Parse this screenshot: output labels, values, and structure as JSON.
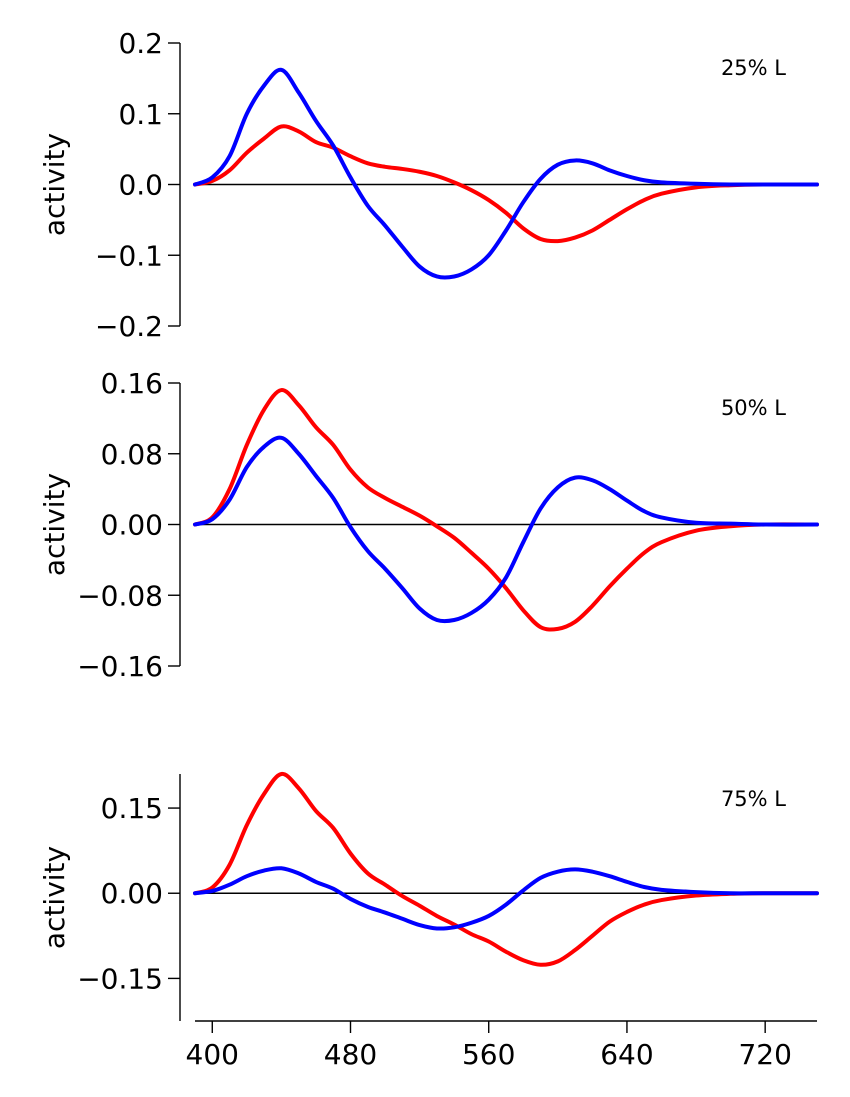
{
  "chart_data": [
    {
      "type": "line",
      "annotation": "25% L",
      "ylabel": "activity",
      "ylim": [
        -0.2,
        0.2
      ],
      "yticks": [
        -0.2,
        -0.1,
        0.0,
        0.1,
        0.2
      ],
      "ytick_labels": [
        "−0.2",
        "−0.1",
        "0.0",
        "0.1",
        "0.2"
      ],
      "series": [
        {
          "color": "#ff0000",
          "x": [
            390,
            400,
            410,
            420,
            430,
            440,
            450,
            460,
            470,
            480,
            490,
            500,
            510,
            520,
            530,
            540,
            550,
            560,
            570,
            580,
            590,
            600,
            610,
            620,
            630,
            640,
            650,
            660,
            680,
            700,
            720,
            750
          ],
          "values": [
            0,
            0.005,
            0.02,
            0.045,
            0.065,
            0.082,
            0.075,
            0.06,
            0.052,
            0.04,
            0.03,
            0.025,
            0.022,
            0.018,
            0.012,
            0.003,
            -0.008,
            -0.022,
            -0.04,
            -0.062,
            -0.077,
            -0.08,
            -0.075,
            -0.065,
            -0.05,
            -0.035,
            -0.022,
            -0.013,
            -0.004,
            -0.001,
            0,
            0
          ]
        },
        {
          "color": "#0000ff",
          "x": [
            390,
            400,
            410,
            420,
            430,
            440,
            450,
            460,
            470,
            480,
            490,
            500,
            510,
            520,
            530,
            540,
            550,
            560,
            570,
            580,
            590,
            600,
            610,
            620,
            630,
            640,
            650,
            660,
            680,
            700,
            720,
            750
          ],
          "values": [
            0,
            0.01,
            0.04,
            0.1,
            0.14,
            0.162,
            0.13,
            0.09,
            0.055,
            0.01,
            -0.03,
            -0.058,
            -0.088,
            -0.116,
            -0.13,
            -0.13,
            -0.12,
            -0.1,
            -0.065,
            -0.025,
            0.008,
            0.028,
            0.034,
            0.03,
            0.02,
            0.012,
            0.006,
            0.003,
            0.001,
            0,
            0,
            0
          ]
        }
      ]
    },
    {
      "type": "line",
      "annotation": "50% L",
      "ylabel": "activity",
      "ylim": [
        -0.16,
        0.16
      ],
      "yticks": [
        -0.16,
        -0.08,
        0.0,
        0.08,
        0.16
      ],
      "ytick_labels": [
        "−0.16",
        "−0.08",
        "0.00",
        "0.08",
        "0.16"
      ],
      "series": [
        {
          "color": "#ff0000",
          "x": [
            390,
            400,
            410,
            420,
            430,
            440,
            450,
            460,
            470,
            480,
            490,
            500,
            510,
            520,
            530,
            540,
            550,
            560,
            570,
            580,
            590,
            600,
            610,
            620,
            630,
            640,
            650,
            660,
            680,
            700,
            720,
            750
          ],
          "values": [
            0,
            0.008,
            0.04,
            0.09,
            0.13,
            0.152,
            0.135,
            0.11,
            0.09,
            0.062,
            0.042,
            0.03,
            0.02,
            0.01,
            -0.002,
            -0.015,
            -0.032,
            -0.05,
            -0.072,
            -0.097,
            -0.116,
            -0.118,
            -0.11,
            -0.092,
            -0.07,
            -0.05,
            -0.032,
            -0.02,
            -0.007,
            -0.002,
            0,
            0
          ]
        },
        {
          "color": "#0000ff",
          "x": [
            390,
            400,
            410,
            420,
            430,
            440,
            450,
            460,
            470,
            480,
            490,
            500,
            510,
            520,
            530,
            540,
            550,
            560,
            570,
            580,
            590,
            600,
            610,
            620,
            630,
            640,
            650,
            660,
            680,
            700,
            720,
            750
          ],
          "values": [
            0,
            0.006,
            0.028,
            0.065,
            0.088,
            0.098,
            0.08,
            0.055,
            0.03,
            -0.003,
            -0.03,
            -0.05,
            -0.072,
            -0.095,
            -0.108,
            -0.108,
            -0.1,
            -0.085,
            -0.06,
            -0.02,
            0.018,
            0.042,
            0.053,
            0.05,
            0.04,
            0.027,
            0.015,
            0.008,
            0.002,
            0.001,
            0,
            0
          ]
        }
      ]
    },
    {
      "type": "line",
      "annotation": "75% L",
      "ylabel": "activity",
      "ylim": [
        -0.225,
        0.21
      ],
      "yticks": [
        -0.15,
        0.0,
        0.15
      ],
      "ytick_labels": [
        "−0.15",
        "0.00",
        "0.15"
      ],
      "xlim": [
        390,
        750
      ],
      "xticks": [
        400,
        480,
        560,
        640,
        720
      ],
      "series": [
        {
          "color": "#ff0000",
          "x": [
            390,
            400,
            410,
            420,
            430,
            440,
            450,
            460,
            470,
            480,
            490,
            500,
            510,
            520,
            530,
            540,
            550,
            560,
            570,
            580,
            590,
            600,
            610,
            620,
            630,
            640,
            650,
            660,
            680,
            700,
            720,
            750
          ],
          "values": [
            0,
            0.01,
            0.05,
            0.12,
            0.175,
            0.21,
            0.185,
            0.145,
            0.115,
            0.07,
            0.035,
            0.015,
            -0.005,
            -0.022,
            -0.04,
            -0.055,
            -0.072,
            -0.085,
            -0.103,
            -0.118,
            -0.126,
            -0.12,
            -0.1,
            -0.075,
            -0.05,
            -0.033,
            -0.02,
            -0.012,
            -0.004,
            -0.001,
            0,
            0
          ]
        },
        {
          "color": "#0000ff",
          "x": [
            390,
            400,
            410,
            420,
            430,
            440,
            450,
            460,
            470,
            480,
            490,
            500,
            510,
            520,
            530,
            540,
            550,
            560,
            570,
            580,
            590,
            600,
            610,
            620,
            630,
            640,
            650,
            660,
            680,
            700,
            720,
            750
          ],
          "values": [
            0,
            0.004,
            0.015,
            0.03,
            0.04,
            0.044,
            0.035,
            0.02,
            0.008,
            -0.01,
            -0.024,
            -0.034,
            -0.045,
            -0.056,
            -0.062,
            -0.06,
            -0.052,
            -0.04,
            -0.02,
            0.005,
            0.027,
            0.038,
            0.042,
            0.038,
            0.03,
            0.02,
            0.011,
            0.006,
            0.002,
            0,
            0,
            0
          ]
        }
      ]
    }
  ]
}
